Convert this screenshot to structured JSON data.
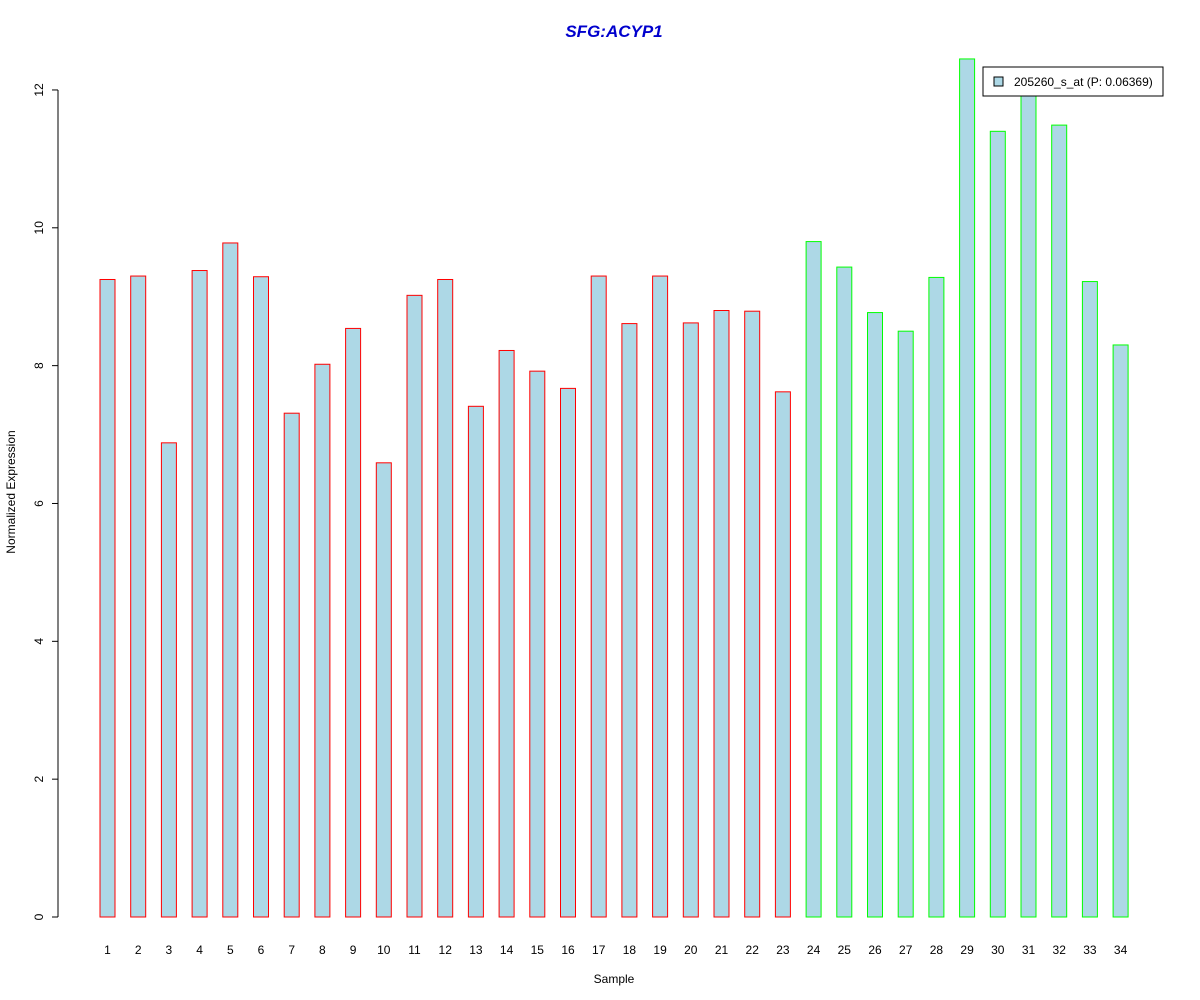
{
  "chart_data": {
    "type": "bar",
    "title": "SFG:ACYP1",
    "xlabel": "Sample",
    "ylabel": "Normalized Expression",
    "ylim": [
      0,
      12.5
    ],
    "yticks": [
      0,
      2,
      4,
      6,
      8,
      10,
      12
    ],
    "grid": false,
    "legend_position": "top-right",
    "categories": [
      "1",
      "2",
      "3",
      "4",
      "5",
      "6",
      "7",
      "8",
      "9",
      "10",
      "11",
      "12",
      "13",
      "14",
      "15",
      "16",
      "17",
      "18",
      "19",
      "20",
      "21",
      "22",
      "23",
      "24",
      "25",
      "26",
      "27",
      "28",
      "29",
      "30",
      "31",
      "32",
      "33",
      "34"
    ],
    "series": [
      {
        "name": "205260_s_at (P: 0.06369)",
        "values": [
          9.25,
          9.3,
          6.88,
          9.38,
          9.78,
          9.29,
          7.31,
          8.02,
          8.54,
          6.59,
          9.02,
          9.25,
          7.41,
          8.22,
          7.92,
          7.67,
          9.3,
          8.61,
          9.3,
          8.62,
          8.8,
          8.79,
          7.62,
          9.8,
          9.43,
          8.77,
          8.5,
          9.28,
          12.45,
          11.4,
          12.0,
          11.49,
          9.22,
          8.3
        ]
      }
    ],
    "group_sizes": [
      23,
      11
    ],
    "colors": {
      "fill": "#add8e6",
      "group1_border": "#ff0000",
      "group2_border": "#00ff00",
      "title": "#0000cd",
      "axis": "#000000"
    }
  }
}
